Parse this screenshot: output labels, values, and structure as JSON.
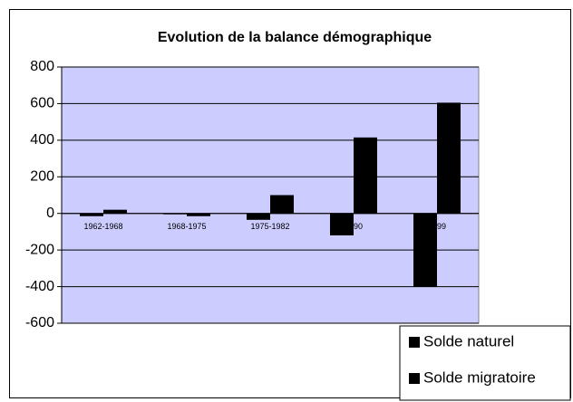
{
  "chart_data": {
    "type": "bar",
    "title": "Evolution de la balance démographique",
    "categories": [
      "1962-1968",
      "1968-1975",
      "1975-1982",
      "1990",
      "1999"
    ],
    "series": [
      {
        "name": "Solde naturel",
        "color": "#000000",
        "values": [
          -15,
          -5,
          -35,
          -120,
          -400
        ]
      },
      {
        "name": "Solde migratoire",
        "color": "#000000",
        "values": [
          20,
          -15,
          100,
          415,
          605
        ]
      }
    ],
    "ylim": [
      -600,
      800
    ],
    "yticks": [
      -600,
      -400,
      -200,
      0,
      200,
      400,
      600,
      800
    ],
    "grid": true,
    "legend": "bottom right",
    "plot_background": "#ccccff"
  }
}
